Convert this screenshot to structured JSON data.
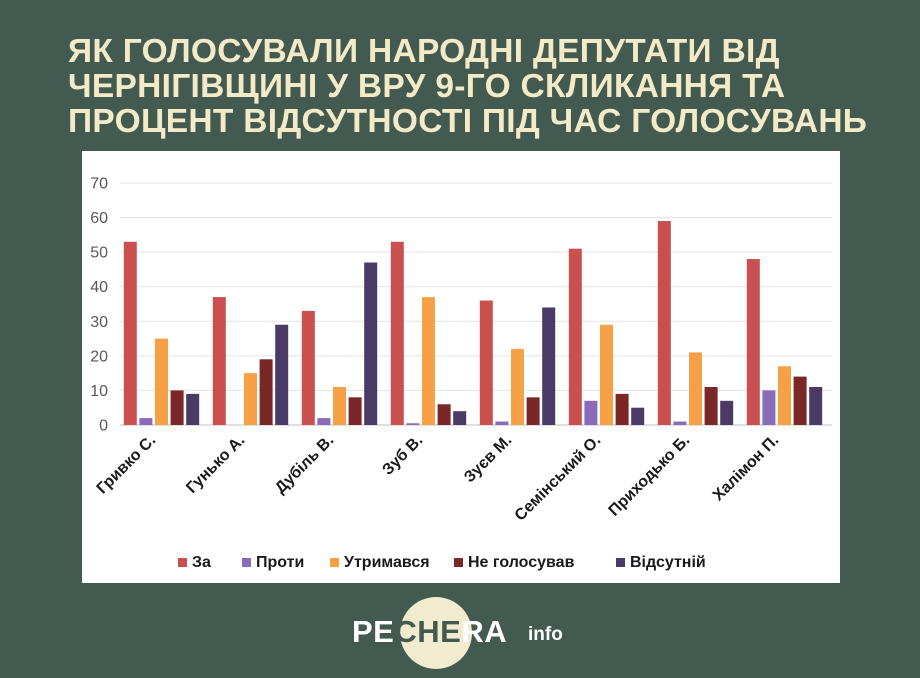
{
  "header": {
    "title_lines": [
      "ЯК ГОЛОСУВАЛИ НАРОДНІ ДЕПУТАТИ ВІД",
      "ЧЕРНІГІВЩИНІ У ВРУ 9-ГО СКЛИКАННЯ ТА",
      "ПРОЦЕНТ ВІДСУТНОСТІ ПІД ЧАС ГОЛОСУВАНЬ"
    ]
  },
  "logo": {
    "part1": "PE",
    "part2": "CHE",
    "part3": "RA",
    "suffix": "info"
  },
  "chart_data": {
    "type": "bar",
    "categories": [
      "Гривко С.",
      "Гунько А.",
      "Дубіль В.",
      "Зуб В.",
      "Зуєв М.",
      "Семінський О.",
      "Приходько Б.",
      "Халімон П."
    ],
    "series": [
      {
        "name": "За",
        "color": "#c9504f",
        "values": [
          53,
          37,
          33,
          53,
          36,
          51,
          59,
          48
        ]
      },
      {
        "name": "Проти",
        "color": "#8a6bb8",
        "values": [
          2,
          0,
          2,
          0.5,
          1,
          7,
          1,
          10
        ]
      },
      {
        "name": "Утримався",
        "color": "#f6a145",
        "values": [
          25,
          15,
          11,
          37,
          22,
          29,
          21,
          17
        ]
      },
      {
        "name": "Не голосував",
        "color": "#7b2727",
        "values": [
          10,
          19,
          8,
          6,
          8,
          9,
          11,
          14
        ]
      },
      {
        "name": "Відсутній",
        "color": "#4a3a66",
        "values": [
          9,
          29,
          47,
          4,
          34,
          5,
          7,
          11
        ]
      }
    ],
    "y_ticks": [
      "0",
      "10",
      "20",
      "30",
      "40",
      "50",
      "60",
      "70"
    ],
    "ylim": [
      0,
      70
    ],
    "grid": true,
    "legend_position": "bottom",
    "title": "",
    "xlabel": "",
    "ylabel": ""
  }
}
